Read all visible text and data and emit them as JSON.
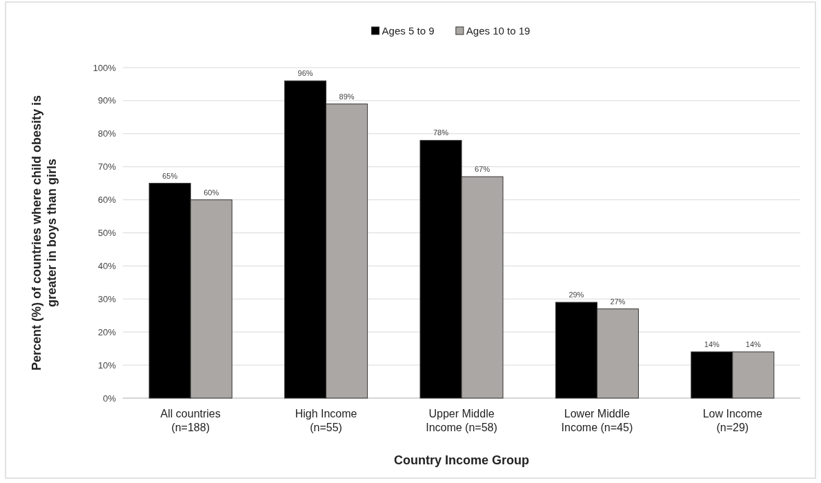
{
  "chart_data": {
    "type": "bar",
    "xlabel": "Country Income Group",
    "ylabel": "Percent (%) of countries where child obesity is greater in boys than girls",
    "categories": [
      "All countries\n(n=188)",
      "High Income\n(n=55)",
      "Upper Middle\nIncome (n=58)",
      "Lower Middle\nIncome (n=45)",
      "Low Income\n(n=29)"
    ],
    "series": [
      {
        "name": "Ages 5 to 9",
        "color": "#000000",
        "values": [
          65,
          96,
          78,
          29,
          14
        ],
        "value_labels": [
          "65%",
          "96%",
          "78%",
          "29%",
          "14%"
        ]
      },
      {
        "name": "Ages 10 to 19",
        "color": "#aba7a4",
        "values": [
          60,
          89,
          67,
          27,
          14
        ],
        "value_labels": [
          "60%",
          "89%",
          "67%",
          "27%",
          "14%"
        ]
      }
    ],
    "ylim": [
      0,
      100
    ],
    "yticks": [
      {
        "value": 0,
        "label": "0%"
      },
      {
        "value": 10,
        "label": "10%"
      },
      {
        "value": 20,
        "label": "20%"
      },
      {
        "value": 30,
        "label": "30%"
      },
      {
        "value": 40,
        "label": "40%"
      },
      {
        "value": 50,
        "label": "50%"
      },
      {
        "value": 60,
        "label": "60%"
      },
      {
        "value": 70,
        "label": "70%"
      },
      {
        "value": 80,
        "label": "80%"
      },
      {
        "value": 90,
        "label": "90%"
      },
      {
        "value": 100,
        "label": "100%"
      }
    ],
    "grid": "y",
    "legend": "top"
  }
}
